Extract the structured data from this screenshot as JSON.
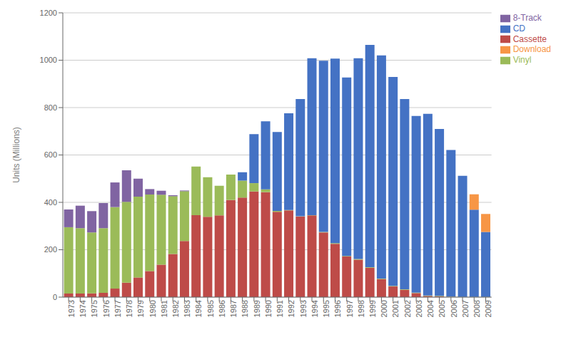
{
  "chart_data": {
    "type": "bar",
    "stacked": true,
    "categories": [
      "1973",
      "1974",
      "1975",
      "1976",
      "1977",
      "1978",
      "1979",
      "1980",
      "1981",
      "1982",
      "1983",
      "1984",
      "1985",
      "1986",
      "1987",
      "1988",
      "1989",
      "1990",
      "1991",
      "1992",
      "1993",
      "1994",
      "1995",
      "1996",
      "1997",
      "1998",
      "1999",
      "2000",
      "2001",
      "2002",
      "2003",
      "2004",
      "2005",
      "2006",
      "2007",
      "2008",
      "2009"
    ],
    "series": [
      {
        "name": "Cassette",
        "color": "#BE4B48",
        "values": [
          15,
          15,
          16,
          18,
          36,
          61,
          83,
          110,
          137,
          182,
          237,
          346,
          339,
          345,
          410,
          420,
          446,
          443,
          360,
          366,
          340,
          345,
          273,
          225,
          172,
          158,
          124,
          76,
          45,
          31,
          17,
          5,
          3,
          1,
          0,
          0,
          0
        ]
      },
      {
        "name": "Vinyl",
        "color": "#9BBB59",
        "values": [
          280,
          276,
          257,
          273,
          344,
          341,
          341,
          323,
          295,
          244,
          210,
          205,
          167,
          125,
          107,
          72,
          35,
          12,
          4,
          2,
          1,
          1,
          2,
          3,
          2,
          3,
          2,
          2,
          2,
          2,
          2,
          2,
          2,
          1,
          1,
          1,
          1
        ]
      },
      {
        "name": "8-Track",
        "color": "#8064A2",
        "values": [
          75,
          95,
          90,
          106,
          104,
          133,
          76,
          23,
          17,
          4,
          3,
          0,
          0,
          0,
          0,
          0,
          0,
          0,
          0,
          0,
          0,
          0,
          0,
          0,
          0,
          0,
          0,
          0,
          0,
          0,
          0,
          0,
          0,
          0,
          0,
          0,
          0
        ]
      },
      {
        "name": "CD",
        "color": "#4472C4",
        "values": [
          0,
          0,
          0,
          0,
          0,
          0,
          0,
          0,
          0,
          0,
          0,
          0,
          0,
          0,
          0,
          35,
          207,
          287,
          333,
          408,
          495,
          662,
          723,
          779,
          753,
          847,
          939,
          942,
          882,
          803,
          746,
          767,
          705,
          619,
          511,
          368,
          274
        ]
      },
      {
        "name": "Download",
        "color": "#F79646",
        "values": [
          0,
          0,
          0,
          0,
          0,
          0,
          0,
          0,
          0,
          0,
          0,
          0,
          0,
          0,
          0,
          0,
          0,
          0,
          0,
          0,
          0,
          0,
          0,
          0,
          0,
          0,
          0,
          0,
          0,
          0,
          0,
          0,
          0,
          0,
          0,
          65,
          76
        ]
      }
    ],
    "ylabel": "Units (Millions)",
    "ylim": [
      0,
      1200
    ],
    "yticks": [
      0,
      200,
      400,
      600,
      800,
      1000,
      1200
    ],
    "grid": true,
    "legend": "upper right"
  }
}
